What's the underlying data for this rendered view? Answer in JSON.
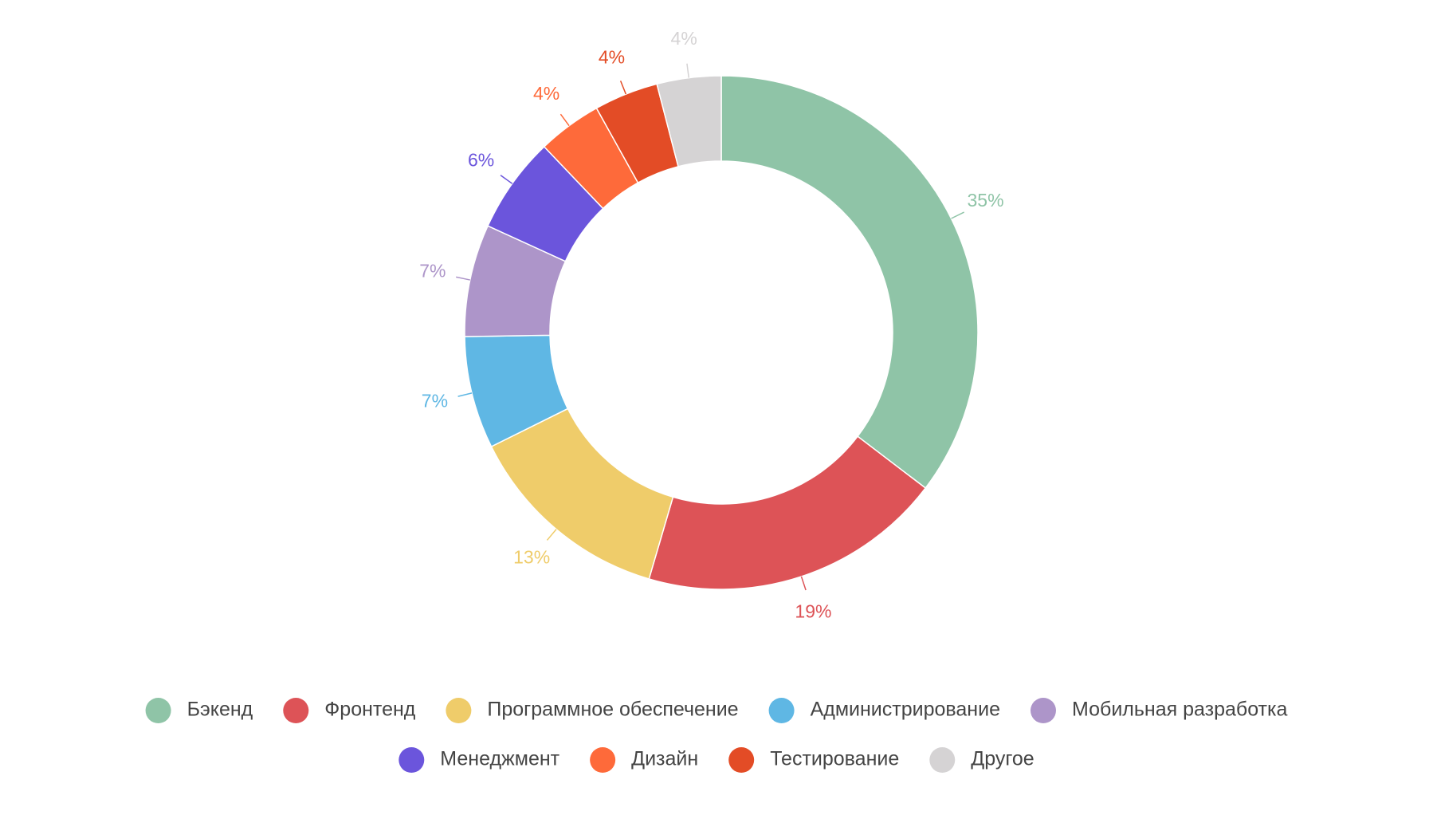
{
  "chart_data": {
    "type": "donut",
    "categories": [
      "Бэкенд",
      "Фронтенд",
      "Программное обеспечение",
      "Администрирование",
      "Мобильная разработка",
      "Менеджмент",
      "Дизайн",
      "Тестирование",
      "Другое"
    ],
    "values": [
      35,
      19,
      13,
      7,
      7,
      6,
      4,
      4,
      4
    ],
    "value_labels": [
      "35%",
      "19%",
      "13%",
      "7%",
      "7%",
      "6%",
      "4%",
      "4%",
      "4%"
    ],
    "colors": [
      "#8fc4a7",
      "#dd5357",
      "#efcc6a",
      "#5fb7e4",
      "#ad95c9",
      "#6b55dc",
      "#fe6a3a",
      "#e34c26",
      "#d5d3d4"
    ],
    "legend": "bottom"
  }
}
